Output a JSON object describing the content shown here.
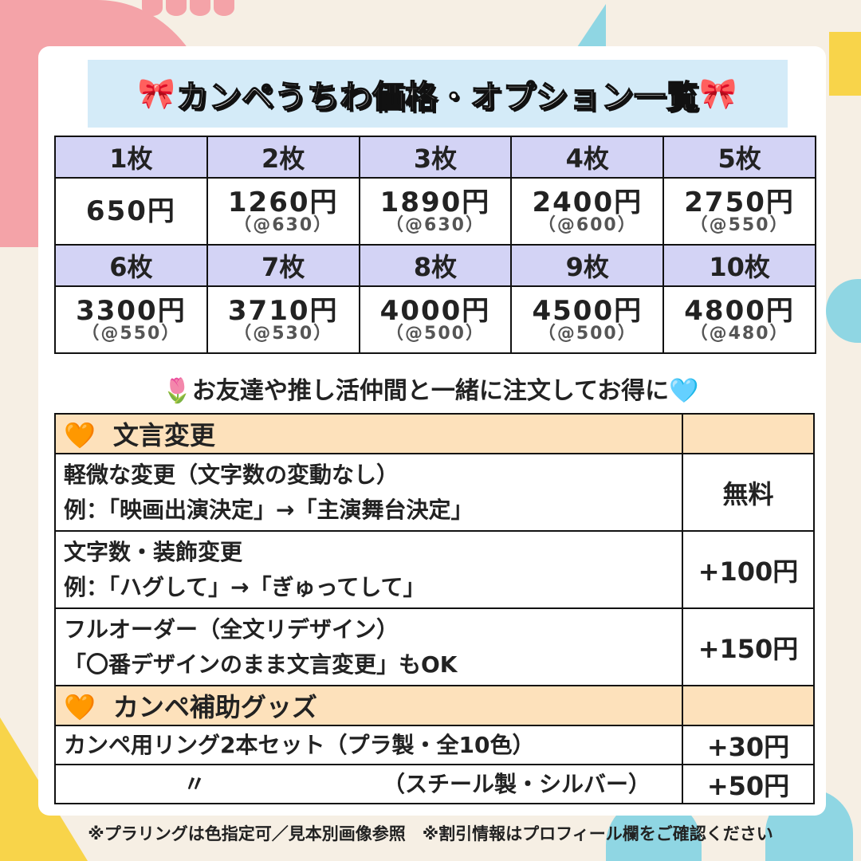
{
  "title": {
    "text": "カンペうちわ価格・オプション一覧",
    "bow": "🎀"
  },
  "prices": [
    {
      "qty": "1枚",
      "price": "650円",
      "unit": ""
    },
    {
      "qty": "2枚",
      "price": "1260円",
      "unit": "（@630）"
    },
    {
      "qty": "3枚",
      "price": "1890円",
      "unit": "（@630）"
    },
    {
      "qty": "4枚",
      "price": "2400円",
      "unit": "（@600）"
    },
    {
      "qty": "5枚",
      "price": "2750円",
      "unit": "（@550）"
    },
    {
      "qty": "6枚",
      "price": "3300円",
      "unit": "（@550）"
    },
    {
      "qty": "7枚",
      "price": "3710円",
      "unit": "（@530）"
    },
    {
      "qty": "8枚",
      "price": "4000円",
      "unit": "（@500）"
    },
    {
      "qty": "9枚",
      "price": "4500円",
      "unit": "（@500）"
    },
    {
      "qty": "10枚",
      "price": "4800円",
      "unit": "（@480）"
    }
  ],
  "tagline": {
    "icon_left": "🌷",
    "text": "お友達や推し活仲間と一緒に注文してお得に",
    "icon_right": "🩵"
  },
  "options": {
    "heart": "🧡",
    "section1": "文言変更",
    "rows1": [
      {
        "line1": "軽微な変更（文字数の変動なし）",
        "line2": "例：「映画出演決定」→「主演舞台決定」",
        "price": "無料"
      },
      {
        "line1": "文字数・装飾変更",
        "line2": "例：「ハグして」→「ぎゅってして」",
        "price": "+100円"
      },
      {
        "line1": "フルオーダー（全文リデザイン）",
        "line2": "「〇番デザインのまま文言変更」もOK",
        "price": "+150円"
      }
    ],
    "section2": "カンペ補助グッズ",
    "rows2": [
      {
        "label": "カンペ用リング2本セット（プラ製・全10色）",
        "price": "+30円"
      },
      {
        "ditto": "〃",
        "label": "（スチール製・シルバー）",
        "price": "+50円"
      }
    ]
  },
  "footer": "※プラリングは色指定可／見本別画像参照　※割引情報はプロフィール欄をご確認ください",
  "colors": {
    "background": "#f6efe4",
    "title_band": "#d4ebf8",
    "qty_header": "#d3d3f5",
    "section_header": "#fde1bb"
  }
}
